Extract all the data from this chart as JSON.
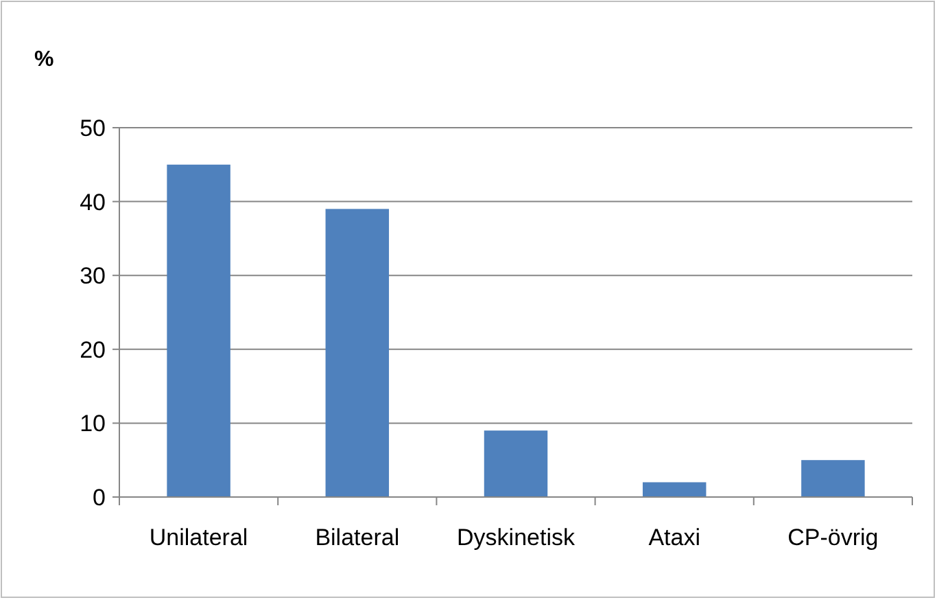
{
  "chart_data": {
    "type": "bar",
    "ylabel": "%",
    "categories": [
      "Unilateral",
      "Bilateral",
      "Dyskinetisk",
      "Ataxi",
      "CP-övrig"
    ],
    "values": [
      45,
      39,
      9,
      2,
      5
    ],
    "color": "#4f81bd",
    "ylim": [
      0,
      50
    ],
    "yticks": [
      0,
      10,
      20,
      30,
      40,
      50
    ],
    "grid": "y"
  }
}
